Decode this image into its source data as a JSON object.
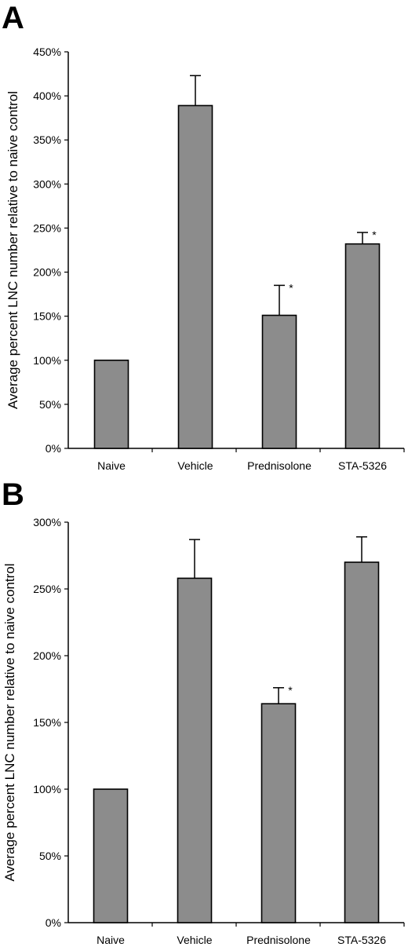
{
  "chart_data": [
    {
      "panel": "A",
      "type": "bar",
      "categories": [
        "Naive",
        "Vehicle",
        "Prednisolone",
        "STA-5326"
      ],
      "values": [
        100,
        389,
        151,
        232
      ],
      "errors": [
        0,
        34,
        34,
        13
      ],
      "significance": [
        "",
        "",
        "*",
        "*"
      ],
      "ylabel": "Average percent LNC number relative to naive control",
      "xlabel": "",
      "ylim": [
        0,
        450
      ],
      "yticks": [
        0,
        50,
        100,
        150,
        200,
        250,
        300,
        350,
        400,
        450
      ],
      "ytick_labels": [
        "0%",
        "50%",
        "100%",
        "150%",
        "200%",
        "250%",
        "300%",
        "350%",
        "400%",
        "450%"
      ],
      "bar_color": "#8c8c8c",
      "grid": false,
      "legend": "none"
    },
    {
      "panel": "B",
      "type": "bar",
      "categories": [
        "Naive",
        "Vehicle",
        "Prednisolone",
        "STA-5326"
      ],
      "values": [
        100,
        258,
        164,
        270
      ],
      "errors": [
        0,
        29,
        12,
        19
      ],
      "significance": [
        "",
        "",
        "*",
        ""
      ],
      "ylabel": "Average percent LNC number relative to naive control",
      "xlabel": "",
      "ylim": [
        0,
        300
      ],
      "yticks": [
        0,
        50,
        100,
        150,
        200,
        250,
        300
      ],
      "ytick_labels": [
        "0%",
        "50%",
        "100%",
        "150%",
        "200%",
        "250%",
        "300%"
      ],
      "bar_color": "#8c8c8c",
      "grid": false,
      "legend": "none"
    }
  ]
}
